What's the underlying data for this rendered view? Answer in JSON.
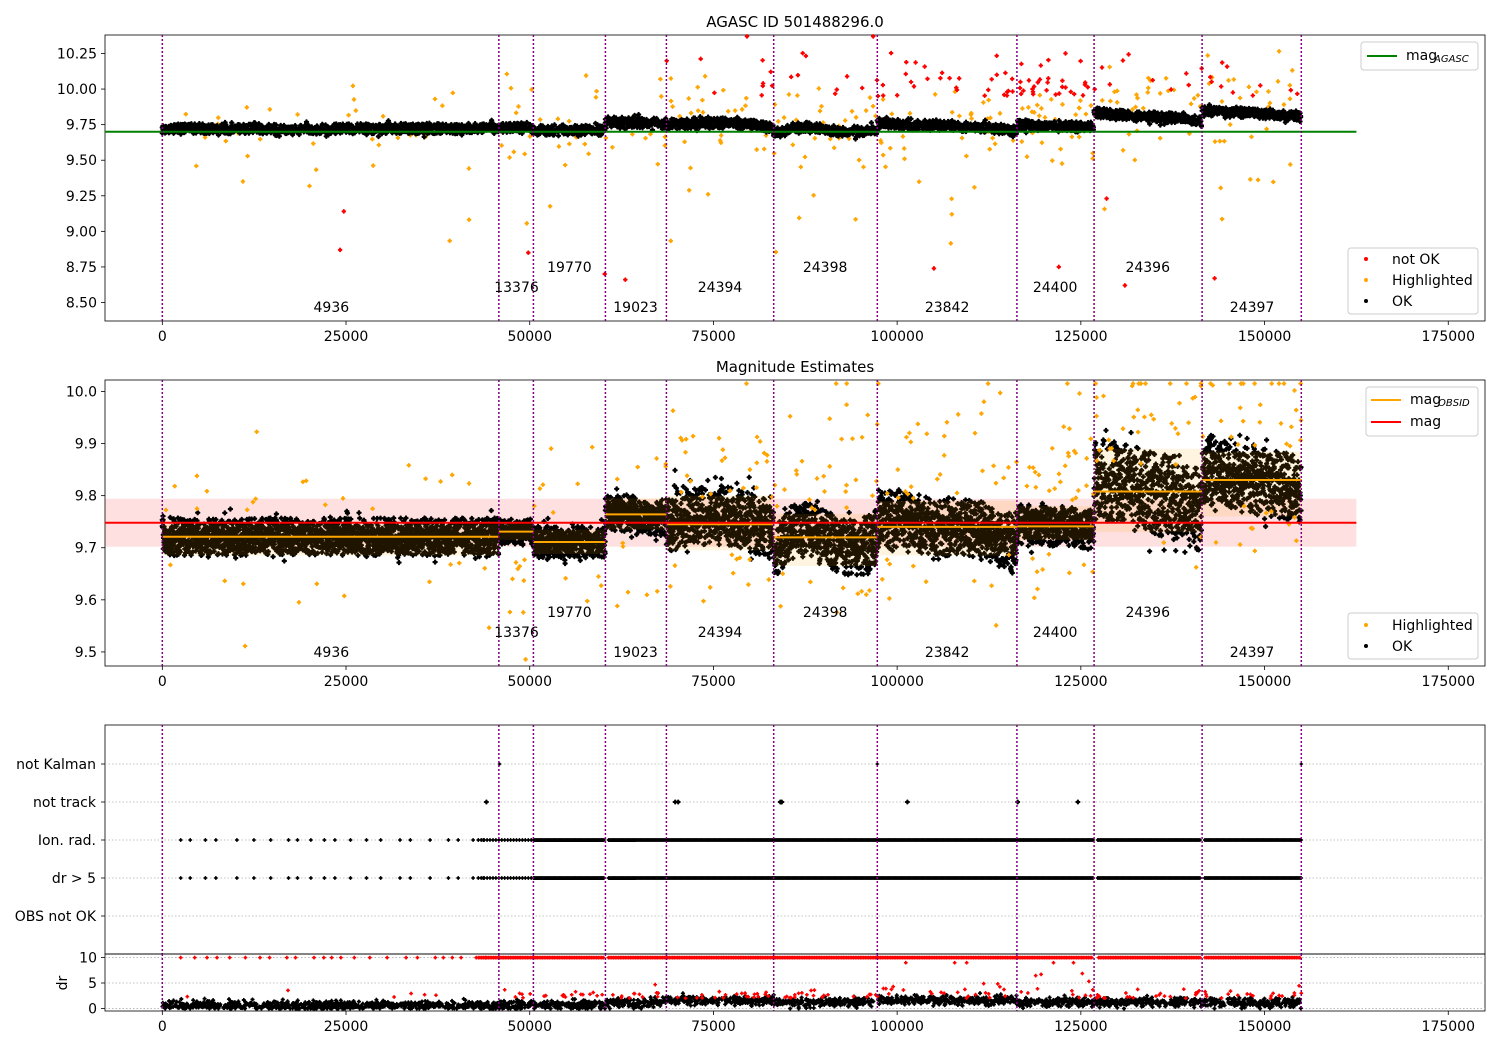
{
  "colors": {
    "ok": "#000000",
    "highlighted": "#ffa500",
    "not_ok": "#ff0000",
    "agasc_line": "#008000",
    "mag_line": "#ff0000",
    "obsid_line": "#ffa500",
    "band": "#ff0000",
    "boundary": "#800080"
  },
  "chart_data": [
    {
      "type": "scatter",
      "title": "AGASC ID 501488296.0",
      "xlim": [
        -7800,
        180000
      ],
      "ylim": [
        8.37,
        10.38
      ],
      "xticks": [
        0,
        25000,
        50000,
        75000,
        100000,
        125000,
        150000,
        175000
      ],
      "yticks": [
        8.5,
        8.75,
        9.0,
        9.25,
        9.5,
        9.75,
        10.0,
        10.25
      ],
      "ytick_labels": [
        "8.50",
        "8.75",
        "9.00",
        "9.25",
        "9.50",
        "9.75",
        "10.00",
        "10.25"
      ],
      "mag_agasc": 9.7,
      "legend_upper": [
        {
          "label": "mag",
          "sub": "AGASC",
          "color": "#008000"
        }
      ],
      "legend_lower": [
        {
          "label": "not OK",
          "color": "#ff0000"
        },
        {
          "label": "Highlighted",
          "color": "#ffa500"
        },
        {
          "label": "OK",
          "color": "#000000"
        }
      ],
      "grid": false
    },
    {
      "type": "scatter",
      "title": "Magnitude Estimates",
      "xlim": [
        -7800,
        180000
      ],
      "ylim": [
        9.473,
        10.022
      ],
      "xticks": [
        0,
        25000,
        50000,
        75000,
        100000,
        125000,
        150000,
        175000
      ],
      "yticks": [
        9.5,
        9.6,
        9.7,
        9.8,
        9.9,
        10.0
      ],
      "ytick_labels": [
        "9.5",
        "9.6",
        "9.7",
        "9.8",
        "9.9",
        "10.0"
      ],
      "mag": 9.748,
      "mag_band": [
        9.702,
        9.794
      ],
      "legend_upper": [
        {
          "label": "mag",
          "sub": "OBSID",
          "color": "#ffa500"
        },
        {
          "label": "mag",
          "sub": "",
          "color": "#ff0000"
        }
      ],
      "legend_lower": [
        {
          "label": "Highlighted",
          "color": "#ffa500"
        },
        {
          "label": "OK",
          "color": "#000000"
        }
      ],
      "grid": false
    },
    {
      "type": "scatter",
      "title": "",
      "xlim": [
        -7800,
        180000
      ],
      "categories": [
        "not Kalman",
        "not track",
        "Ion. rad.",
        "dr > 5",
        "OBS not OK"
      ],
      "grid": true
    },
    {
      "type": "scatter",
      "title": "",
      "ylabel": "dr",
      "xlim": [
        -7800,
        180000
      ],
      "ylim": [
        -0.5,
        10.7
      ],
      "xticks": [
        0,
        25000,
        50000,
        75000,
        100000,
        125000,
        150000,
        175000
      ],
      "yticks": [
        0,
        5,
        10
      ],
      "ytick_labels": [
        "0",
        "5",
        "10"
      ],
      "grid": true
    }
  ],
  "observations": [
    {
      "obsid": "4936",
      "start": 0,
      "end": 45800,
      "label_x": 23000,
      "label_row": 2,
      "mean": 9.721,
      "ok_lo": 9.675,
      "ok_hi": 9.755
    },
    {
      "obsid": "13376",
      "start": 45800,
      "end": 50500,
      "label_x": 48200,
      "label_row": 1,
      "mean": 9.731,
      "ok_lo": 9.705,
      "ok_hi": 9.758
    },
    {
      "obsid": "19770",
      "start": 50500,
      "end": 60300,
      "label_x": 55400,
      "label_row": 0,
      "mean": 9.711,
      "ok_lo": 9.678,
      "ok_hi": 9.745
    },
    {
      "obsid": "19023",
      "start": 60300,
      "end": 68600,
      "label_x": 64400,
      "label_row": 2,
      "mean": 9.764,
      "ok_lo": 9.725,
      "ok_hi": 9.805
    },
    {
      "obsid": "24394",
      "start": 68600,
      "end": 83200,
      "label_x": 75900,
      "label_row": 1,
      "mean": 9.745,
      "ok_lo": 9.685,
      "ok_hi": 9.81
    },
    {
      "obsid": "24398",
      "start": 83200,
      "end": 97300,
      "label_x": 90200,
      "label_row": 0,
      "mean": 9.72,
      "ok_lo": 9.655,
      "ok_hi": 9.775
    },
    {
      "obsid": "23842",
      "start": 97300,
      "end": 116300,
      "label_x": 106800,
      "label_row": 2,
      "mean": 9.74,
      "ok_lo": 9.675,
      "ok_hi": 9.8
    },
    {
      "obsid": "24400",
      "start": 116300,
      "end": 126800,
      "label_x": 121500,
      "label_row": 1,
      "mean": 9.741,
      "ok_lo": 9.705,
      "ok_hi": 9.79
    },
    {
      "obsid": "24396",
      "start": 126800,
      "end": 141500,
      "label_x": 134100,
      "label_row": 0,
      "mean": 9.808,
      "ok_lo": 9.72,
      "ok_hi": 9.9
    },
    {
      "obsid": "24397",
      "start": 141500,
      "end": 155000,
      "label_x": 148300,
      "label_row": 2,
      "mean": 9.83,
      "ok_lo": 9.75,
      "ok_hi": 9.895
    }
  ]
}
